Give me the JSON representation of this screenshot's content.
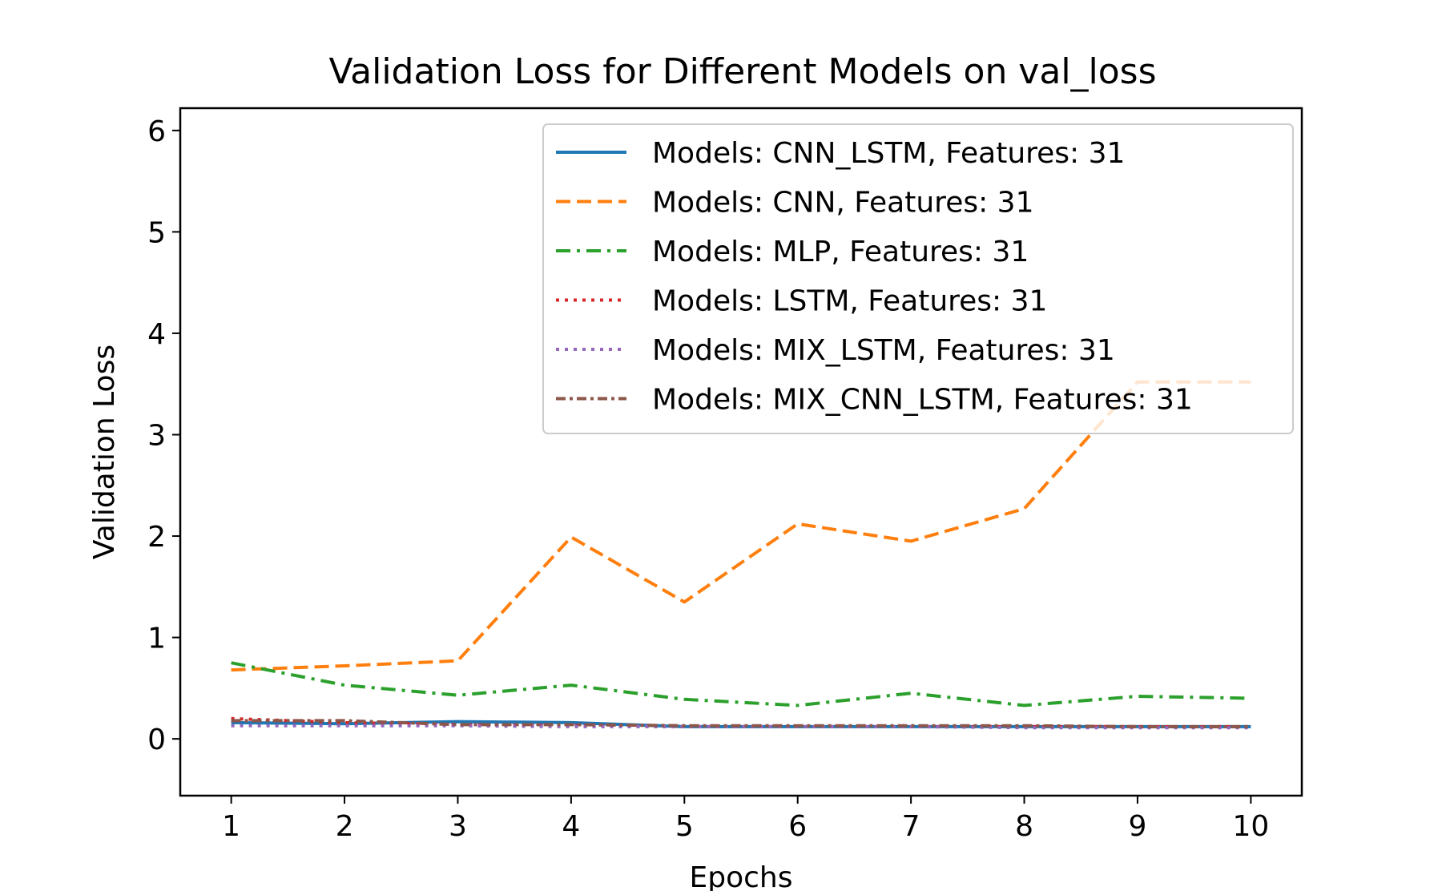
{
  "chart_data": {
    "type": "line",
    "title": "Validation Loss for Different Models on val_loss",
    "xlabel": "Epochs",
    "ylabel": "Validation Loss",
    "x": [
      1,
      2,
      3,
      4,
      5,
      6,
      7,
      8,
      9,
      10
    ],
    "xlim": [
      0.55,
      10.45
    ],
    "ylim": [
      -0.56,
      6.22
    ],
    "xticks": [
      1,
      2,
      3,
      4,
      5,
      6,
      7,
      8,
      9,
      10
    ],
    "yticks": [
      0,
      1,
      2,
      3,
      4,
      5,
      6
    ],
    "grid": false,
    "legend_position": "top-right",
    "series": [
      {
        "name": "Models: CNN_LSTM, Features: 31",
        "color": "#1f77b4",
        "dash": "solid",
        "values": [
          0.16,
          0.15,
          0.17,
          0.16,
          0.12,
          0.12,
          0.12,
          0.12,
          0.12,
          0.12
        ]
      },
      {
        "name": "Models: CNN, Features: 31",
        "color": "#ff7f0e",
        "dash": "dashed",
        "values": [
          0.68,
          0.72,
          0.77,
          1.99,
          1.35,
          2.12,
          1.95,
          2.27,
          3.52,
          3.52
        ]
      },
      {
        "name": "Models: MLP, Features: 31",
        "color": "#2ca02c",
        "dash": "dashdot",
        "values": [
          0.75,
          0.53,
          0.43,
          0.53,
          0.39,
          0.33,
          0.45,
          0.33,
          0.42,
          0.4
        ]
      },
      {
        "name": "Models: LSTM, Features: 31",
        "color": "#d62728",
        "dash": "dotted",
        "values": [
          0.2,
          0.16,
          0.14,
          0.13,
          0.12,
          0.12,
          0.12,
          0.12,
          0.12,
          0.12
        ]
      },
      {
        "name": "Models: MIX_LSTM, Features: 31",
        "color": "#9467bd",
        "dash": "dotted",
        "values": [
          0.13,
          0.13,
          0.13,
          0.12,
          0.12,
          0.12,
          0.12,
          0.11,
          0.11,
          0.11
        ]
      },
      {
        "name": "Models: MIX_CNN_LSTM, Features: 31",
        "color": "#8c564b",
        "dash": "densedashdot",
        "values": [
          0.18,
          0.18,
          0.14,
          0.14,
          0.13,
          0.13,
          0.13,
          0.13,
          0.12,
          0.12
        ]
      }
    ]
  }
}
